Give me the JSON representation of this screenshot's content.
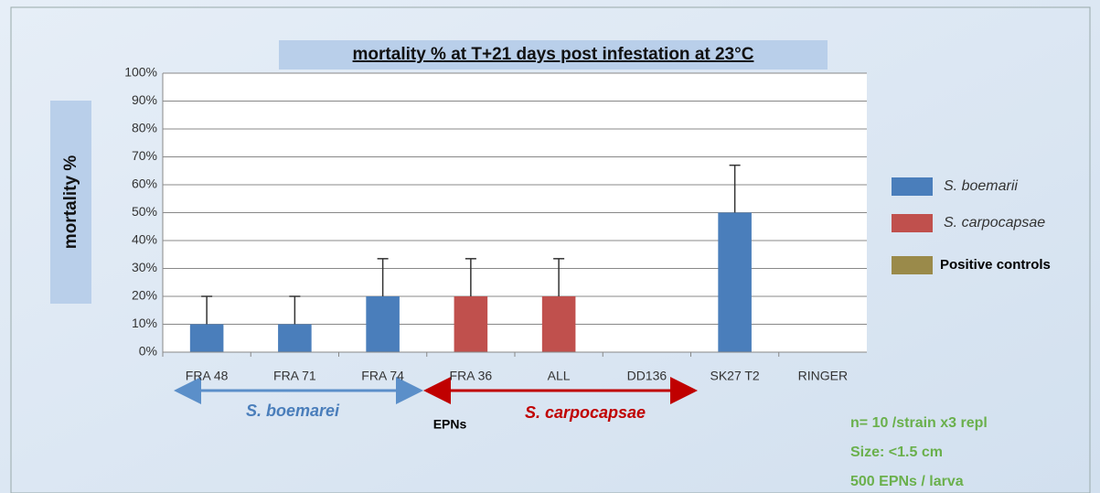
{
  "chart_data": {
    "type": "bar",
    "title": "mortality % at T+21 days post infestation at 23°C",
    "y_label": "mortality %",
    "categories": [
      "FRA 48",
      "FRA 71",
      "FRA 74",
      "FRA 36",
      "ALL",
      "DD136",
      "SK27 T2",
      "RINGER"
    ],
    "values": [
      10,
      10,
      20,
      20,
      20,
      0,
      50,
      0
    ],
    "errors": [
      10,
      10,
      13.5,
      13.5,
      13.5,
      null,
      17,
      null
    ],
    "colors": [
      "#4a7ebb",
      "#4a7ebb",
      "#4a7ebb",
      "#c0504d",
      "#c0504d",
      "#9a8a4a",
      "#4a7ebb",
      "#9a8a4a"
    ],
    "ylim": [
      0,
      100
    ],
    "yticks": [
      {
        "value": 0,
        "label": "0%"
      },
      {
        "value": 10,
        "label": "10%"
      },
      {
        "value": 20,
        "label": "20%"
      },
      {
        "value": 30,
        "label": "30%"
      },
      {
        "value": 40,
        "label": "40%"
      },
      {
        "value": 50,
        "label": "50%"
      },
      {
        "value": 60,
        "label": "60%"
      },
      {
        "value": 70,
        "label": "70%"
      },
      {
        "value": 80,
        "label": "80%"
      },
      {
        "value": 90,
        "label": "90%"
      },
      {
        "value": 100,
        "label": "100%"
      }
    ],
    "grid": true,
    "legend": [
      {
        "name": "S. boemarii",
        "color": "#4a7ebb"
      },
      {
        "name": "S. carpocapsae",
        "color": "#c0504d"
      },
      {
        "name": "Positive controls",
        "color": "#9a8a4a"
      }
    ],
    "annotations": {
      "group1": "S. boemarei",
      "group2": "S. carpocapsae",
      "epns": "EPNs",
      "notes": [
        "n= 10 /strain x3 repl",
        "Size: <1.5 cm",
        "500 EPNs / larva"
      ]
    }
  }
}
